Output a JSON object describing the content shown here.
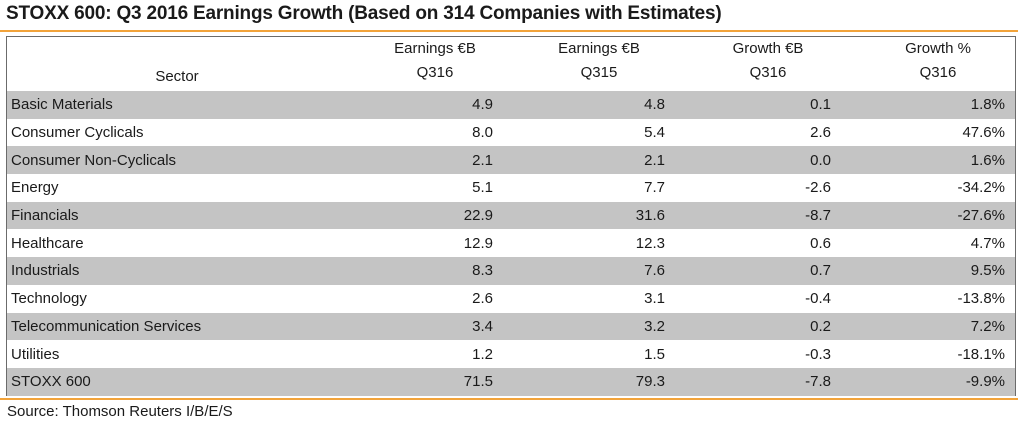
{
  "title": "STOXX 600: Q3 2016 Earnings Growth (Based on 314 Companies with Estimates)",
  "source": "Source: Thomson Reuters I/B/E/S",
  "colors": {
    "accent_rule": "#f2a33a",
    "row_shade": "#c4c4c4",
    "border": "#6b6b6b"
  },
  "chart_data": {
    "type": "table",
    "title": "STOXX 600: Q3 2016 Earnings Growth (Based on 314 Companies with Estimates)",
    "columns": [
      {
        "line1": "",
        "line2": "Sector"
      },
      {
        "line1": "Earnings €B",
        "line2": "Q316"
      },
      {
        "line1": "Earnings €B",
        "line2": "Q315"
      },
      {
        "line1": "Growth €B",
        "line2": "Q316"
      },
      {
        "line1": "Growth %",
        "line2": "Q316"
      }
    ],
    "rows": [
      {
        "sector": "Basic Materials",
        "earnings_q316": "4.9",
        "earnings_q315": "4.8",
        "growth_eb": "0.1",
        "growth_pct": "1.8%",
        "shaded": true
      },
      {
        "sector": "Consumer Cyclicals",
        "earnings_q316": "8.0",
        "earnings_q315": "5.4",
        "growth_eb": "2.6",
        "growth_pct": "47.6%",
        "shaded": false
      },
      {
        "sector": "Consumer Non-Cyclicals",
        "earnings_q316": "2.1",
        "earnings_q315": "2.1",
        "growth_eb": "0.0",
        "growth_pct": "1.6%",
        "shaded": true
      },
      {
        "sector": "Energy",
        "earnings_q316": "5.1",
        "earnings_q315": "7.7",
        "growth_eb": "-2.6",
        "growth_pct": "-34.2%",
        "shaded": false
      },
      {
        "sector": "Financials",
        "earnings_q316": "22.9",
        "earnings_q315": "31.6",
        "growth_eb": "-8.7",
        "growth_pct": "-27.6%",
        "shaded": true
      },
      {
        "sector": "Healthcare",
        "earnings_q316": "12.9",
        "earnings_q315": "12.3",
        "growth_eb": "0.6",
        "growth_pct": "4.7%",
        "shaded": false
      },
      {
        "sector": "Industrials",
        "earnings_q316": "8.3",
        "earnings_q315": "7.6",
        "growth_eb": "0.7",
        "growth_pct": "9.5%",
        "shaded": true
      },
      {
        "sector": "Technology",
        "earnings_q316": "2.6",
        "earnings_q315": "3.1",
        "growth_eb": "-0.4",
        "growth_pct": "-13.8%",
        "shaded": false
      },
      {
        "sector": "Telecommunication Services",
        "earnings_q316": "3.4",
        "earnings_q315": "3.2",
        "growth_eb": "0.2",
        "growth_pct": "7.2%",
        "shaded": true
      },
      {
        "sector": "Utilities",
        "earnings_q316": "1.2",
        "earnings_q315": "1.5",
        "growth_eb": "-0.3",
        "growth_pct": "-18.1%",
        "shaded": false
      }
    ],
    "total": {
      "sector": "STOXX 600",
      "earnings_q316": "71.5",
      "earnings_q315": "79.3",
      "growth_eb": "-7.8",
      "growth_pct": "-9.9%"
    }
  }
}
